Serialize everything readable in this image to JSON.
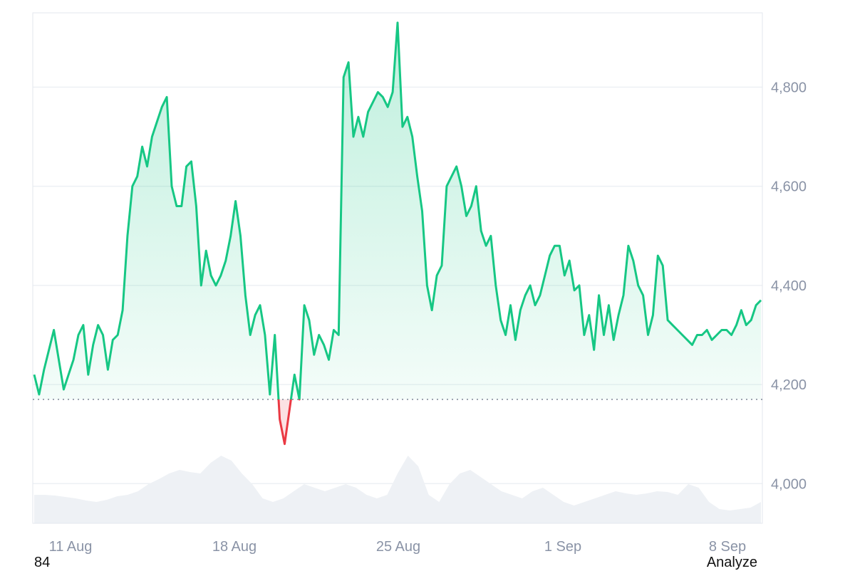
{
  "chart_data": {
    "type": "area",
    "title": "",
    "xlabel": "",
    "ylabel": "",
    "x_ticks": [
      "11 Aug",
      "18 Aug",
      "25 Aug",
      "1 Sep",
      "8 Sep"
    ],
    "y_ticks": [
      "4,000",
      "4,200",
      "4,400",
      "4,600",
      "4,800"
    ],
    "ylim": [
      3920,
      4950
    ],
    "baseline": 4170,
    "grid": true,
    "colors": {
      "up": "#16c784",
      "down": "#ea3943",
      "grid": "#edf0f4",
      "volume": "#eef1f5"
    },
    "series": [
      {
        "type": "price",
        "values": [
          4220,
          4180,
          4230,
          4270,
          4310,
          4250,
          4190,
          4220,
          4250,
          4300,
          4320,
          4220,
          4280,
          4320,
          4300,
          4230,
          4290,
          4300,
          4350,
          4500,
          4600,
          4620,
          4680,
          4640,
          4700,
          4730,
          4760,
          4780,
          4600,
          4560,
          4560,
          4640,
          4650,
          4560,
          4400,
          4470,
          4420,
          4400,
          4420,
          4450,
          4500,
          4570,
          4500,
          4380,
          4300,
          4340,
          4360,
          4300,
          4180,
          4300,
          4130,
          4080,
          4150,
          4220,
          4170,
          4360,
          4330,
          4260,
          4300,
          4280,
          4250,
          4310,
          4300,
          4820,
          4850,
          4700,
          4740,
          4700,
          4750,
          4770,
          4790,
          4780,
          4760,
          4790,
          4930,
          4720,
          4740,
          4700,
          4620,
          4550,
          4400,
          4350,
          4420,
          4440,
          4600,
          4620,
          4640,
          4600,
          4540,
          4560,
          4600,
          4510,
          4480,
          4500,
          4400,
          4330,
          4300,
          4360,
          4290,
          4350,
          4380,
          4400,
          4360,
          4380,
          4420,
          4460,
          4480,
          4480,
          4420,
          4450,
          4390,
          4400,
          4300,
          4340,
          4270,
          4380,
          4300,
          4360,
          4290,
          4340,
          4380,
          4480,
          4450,
          4400,
          4380,
          4300,
          4340,
          4460,
          4440,
          4330,
          4320,
          4310,
          4300,
          4290,
          4280,
          4300,
          4300,
          4310,
          4290,
          4300,
          4310,
          4310,
          4300,
          4320,
          4350,
          4320,
          4330,
          4360,
          4370
        ]
      },
      {
        "type": "volume",
        "values": [
          0.4,
          0.4,
          0.39,
          0.37,
          0.35,
          0.32,
          0.3,
          0.33,
          0.38,
          0.4,
          0.45,
          0.55,
          0.62,
          0.7,
          0.75,
          0.72,
          0.7,
          0.85,
          0.95,
          0.88,
          0.7,
          0.55,
          0.35,
          0.3,
          0.35,
          0.45,
          0.55,
          0.5,
          0.45,
          0.5,
          0.55,
          0.5,
          0.4,
          0.35,
          0.4,
          0.7,
          0.95,
          0.8,
          0.4,
          0.3,
          0.55,
          0.7,
          0.75,
          0.65,
          0.55,
          0.45,
          0.4,
          0.35,
          0.45,
          0.5,
          0.4,
          0.3,
          0.25,
          0.3,
          0.35,
          0.4,
          0.45,
          0.42,
          0.4,
          0.42,
          0.45,
          0.44,
          0.4,
          0.55,
          0.5,
          0.3,
          0.2,
          0.18,
          0.2,
          0.22,
          0.3
        ]
      }
    ]
  },
  "footer": {
    "left": "84",
    "right": "Analyze"
  }
}
